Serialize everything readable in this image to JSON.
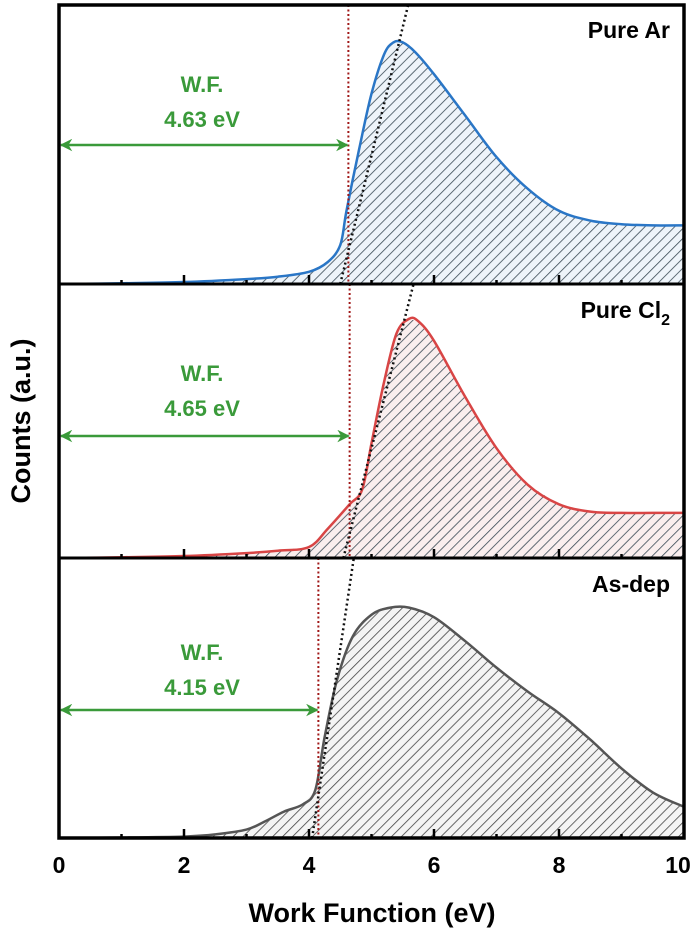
{
  "chart_data": {
    "type": "area",
    "xlabel": "Work Function (eV)",
    "ylabel": "Counts (a.u.)",
    "xlim": [
      0,
      10
    ],
    "x_ticks": [
      0,
      2,
      4,
      6,
      8,
      10
    ],
    "x_tick_labels": [
      "0",
      "2",
      "4",
      "6",
      "8",
      "10"
    ],
    "x_minor_ticks": [
      1,
      3,
      5,
      7,
      9
    ],
    "ylim": [
      0,
      1
    ],
    "grid": false,
    "annotation_color": "#3a9a3a",
    "cutoff_line_color": "#a01818",
    "fit_line_color": "#111111",
    "series": [
      {
        "name": "Pure Ar",
        "label_main": "Pure Ar",
        "label_sub": "",
        "color": "#2a76c6",
        "work_function": 4.63,
        "wf_title": "W.F.",
        "wf_value": "4.63 eV",
        "fit_line": [
          [
            4.5,
            0.0
          ],
          [
            5.45,
            1.0
          ]
        ],
        "x": [
          0,
          1,
          2,
          3,
          3.5,
          4.0,
          4.3,
          4.5,
          4.6,
          4.8,
          5.0,
          5.2,
          5.35,
          5.5,
          5.7,
          6.0,
          6.5,
          7.0,
          7.5,
          8.0,
          8.5,
          9.0,
          9.5,
          10.0
        ],
        "y": [
          0.0,
          0.003,
          0.008,
          0.02,
          0.03,
          0.05,
          0.09,
          0.16,
          0.3,
          0.55,
          0.78,
          0.94,
          0.99,
          0.99,
          0.95,
          0.86,
          0.69,
          0.52,
          0.39,
          0.3,
          0.26,
          0.245,
          0.24,
          0.24
        ]
      },
      {
        "name": "Pure Cl2",
        "label_main": "Pure Cl",
        "label_sub": "2",
        "color": "#d84545",
        "work_function": 4.65,
        "wf_title": "W.F.",
        "wf_value": "4.65 eV",
        "fit_line": [
          [
            4.55,
            0.0
          ],
          [
            5.6,
            1.05
          ]
        ],
        "x": [
          0,
          1,
          2,
          3,
          3.5,
          4.0,
          4.3,
          4.65,
          4.85,
          5.0,
          5.2,
          5.4,
          5.6,
          5.75,
          6.0,
          6.5,
          7.0,
          7.5,
          8.0,
          8.5,
          9.0,
          9.5,
          10.0
        ],
        "y": [
          0.0,
          0.003,
          0.008,
          0.02,
          0.03,
          0.045,
          0.12,
          0.22,
          0.28,
          0.47,
          0.72,
          0.92,
          0.98,
          0.97,
          0.89,
          0.66,
          0.45,
          0.3,
          0.22,
          0.19,
          0.185,
          0.185,
          0.185
        ]
      },
      {
        "name": "As-dep",
        "label_main": "As-dep",
        "label_sub": "",
        "color": "#555555",
        "work_function": 4.15,
        "wf_title": "W.F.",
        "wf_value": "4.15 eV",
        "fit_line": [
          [
            4.05,
            0.0
          ],
          [
            4.65,
            1.05
          ]
        ],
        "x": [
          0,
          1,
          2,
          2.5,
          3.0,
          3.3,
          3.6,
          3.9,
          4.1,
          4.25,
          4.45,
          4.7,
          5.0,
          5.3,
          5.6,
          6.0,
          6.5,
          7.0,
          7.5,
          8.0,
          8.5,
          9.0,
          9.5,
          10.0
        ],
        "y": [
          0.0,
          0.002,
          0.006,
          0.015,
          0.035,
          0.07,
          0.11,
          0.14,
          0.2,
          0.42,
          0.66,
          0.84,
          0.93,
          0.96,
          0.96,
          0.92,
          0.82,
          0.71,
          0.61,
          0.52,
          0.41,
          0.29,
          0.19,
          0.13
        ]
      }
    ]
  }
}
